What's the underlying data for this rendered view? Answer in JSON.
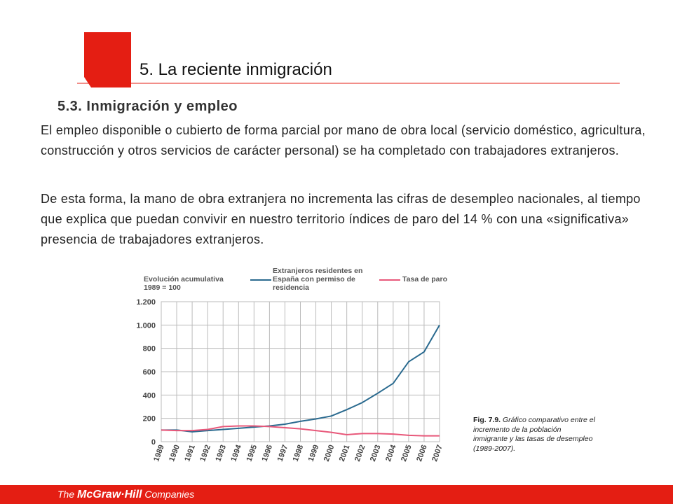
{
  "header": {
    "title": "5. La reciente inmigración"
  },
  "section": {
    "title": "5.3. Inmigración y empleo"
  },
  "paragraphs": [
    "El empleo disponible o cubierto de forma parcial por mano de obra local (servicio doméstico, agricultura, construcción y otros servicios de carácter personal) se ha completado con trabajadores extranjeros.",
    "De esta forma, la mano de obra extranjera no incrementa las cifras de desempleo nacionales, al tiempo que explica que puedan convivir en nuestro territorio índices de paro del 14 % con una «significativa» presencia de trabajadores extranjeros."
  ],
  "chart_data": {
    "type": "line",
    "y_label": [
      "Evolución acumulativa",
      "1989 = 100"
    ],
    "x": [
      1989,
      1990,
      1991,
      1992,
      1993,
      1994,
      1995,
      1996,
      1997,
      1998,
      1999,
      2000,
      2001,
      2002,
      2003,
      2004,
      2005,
      2006,
      2007
    ],
    "xlim": [
      1989,
      2007
    ],
    "xticks": [
      1989,
      1990,
      1991,
      1992,
      1993,
      1994,
      1995,
      1996,
      1997,
      1998,
      1999,
      2000,
      2001,
      2002,
      2003,
      2004,
      2005,
      2006,
      2007
    ],
    "ylim": [
      0,
      1200
    ],
    "yticks": [
      0,
      200,
      400,
      600,
      800,
      {
        "value": 1000,
        "label": "1.000"
      },
      {
        "value": 1200,
        "label": "1.200"
      }
    ],
    "grid": true,
    "series": [
      {
        "name": "Extranjeros residentes en España con permiso de residencia",
        "color": "#2a6a8f",
        "values": [
          100,
          100,
          85,
          95,
          105,
          115,
          125,
          135,
          150,
          175,
          195,
          220,
          275,
          335,
          415,
          500,
          685,
          770,
          1000
        ]
      },
      {
        "name": "Tasa de paro",
        "color": "#e8587a",
        "values": [
          100,
          95,
          95,
          105,
          130,
          135,
          135,
          130,
          120,
          110,
          95,
          80,
          60,
          70,
          70,
          65,
          55,
          50,
          50
        ]
      }
    ]
  },
  "caption": {
    "label": "Fig. 7.9.",
    "text": "Gráfico comparativo entre el incremento de la población inmigrante y las tasas de desempleo (1989-2007)."
  },
  "footer": {
    "the": "The",
    "brand": "McGraw·Hill",
    "companies": "Companies"
  }
}
